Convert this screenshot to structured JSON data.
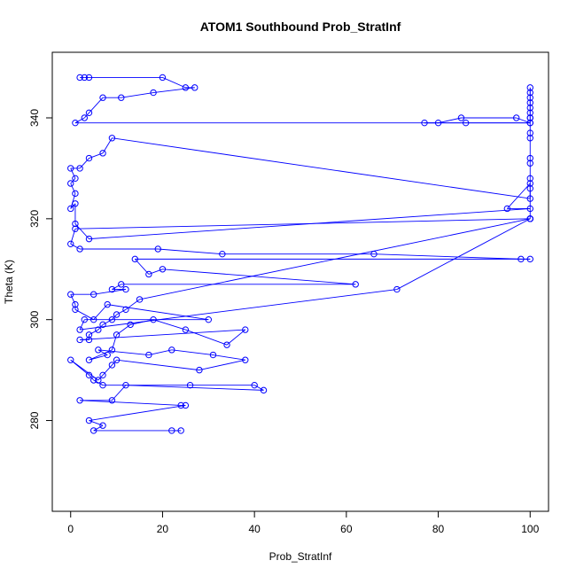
{
  "chart_data": {
    "type": "line",
    "title": "ATOM1 Southbound Prob_StratInf",
    "xlabel": "Prob_StratInf",
    "ylabel": "Theta (K)",
    "xlim": [
      -4,
      104
    ],
    "ylim": [
      262,
      353
    ],
    "xticks": [
      0,
      20,
      40,
      60,
      80,
      100
    ],
    "yticks": [
      280,
      300,
      320,
      340
    ],
    "grid": false,
    "legend": "none",
    "color": "#0000ff",
    "marker": "open-circle",
    "series": [
      {
        "x": [
          2,
          3,
          4,
          20,
          25,
          27,
          18,
          11,
          7,
          4,
          3,
          1,
          100,
          97,
          85,
          80,
          77,
          86,
          100,
          100,
          100,
          100,
          100,
          100,
          100,
          100,
          100,
          100,
          100,
          100,
          100,
          100,
          100,
          100,
          9,
          7,
          4,
          2,
          0,
          1,
          0,
          1,
          0,
          1,
          1,
          4,
          100,
          95,
          100,
          100,
          100,
          1,
          0,
          2,
          19,
          33,
          66,
          98,
          100,
          14,
          17,
          20,
          62,
          11,
          9,
          12,
          5,
          0,
          1,
          1,
          5,
          8,
          30,
          3,
          2,
          71,
          100,
          15,
          12,
          10,
          9,
          7,
          6,
          4,
          4,
          2,
          38,
          34,
          25,
          18,
          13,
          10,
          9,
          4,
          8,
          6,
          17,
          22,
          31,
          38,
          28,
          10,
          9,
          7,
          6,
          0,
          4,
          5,
          7,
          26,
          40,
          42,
          12,
          9,
          2,
          24,
          25,
          4,
          7,
          5,
          24,
          22
        ],
        "y": [
          348,
          348,
          348,
          348,
          346,
          346,
          345,
          344,
          344,
          341,
          340,
          339,
          339,
          340,
          340,
          339,
          339,
          339,
          339,
          340,
          340,
          341,
          342,
          343,
          344,
          345,
          346,
          337,
          336,
          332,
          331,
          328,
          326,
          324,
          336,
          333,
          332,
          330,
          330,
          328,
          327,
          325,
          322,
          323,
          319,
          316,
          322,
          322,
          327,
          320,
          320,
          318,
          315,
          314,
          314,
          313,
          313,
          312,
          312,
          312,
          309,
          310,
          307,
          307,
          306,
          306,
          305,
          305,
          303,
          302,
          300,
          303,
          300,
          300,
          298,
          306,
          320,
          304,
          302,
          301,
          300,
          299,
          298,
          297,
          296,
          296,
          298,
          295,
          298,
          300,
          299,
          297,
          294,
          292,
          293,
          294,
          293,
          294,
          293,
          292,
          290,
          292,
          291,
          289,
          288,
          292,
          289,
          288,
          287,
          287,
          287,
          286,
          287,
          284,
          284,
          283,
          283,
          280,
          279,
          278,
          278,
          278
        ]
      }
    ]
  }
}
